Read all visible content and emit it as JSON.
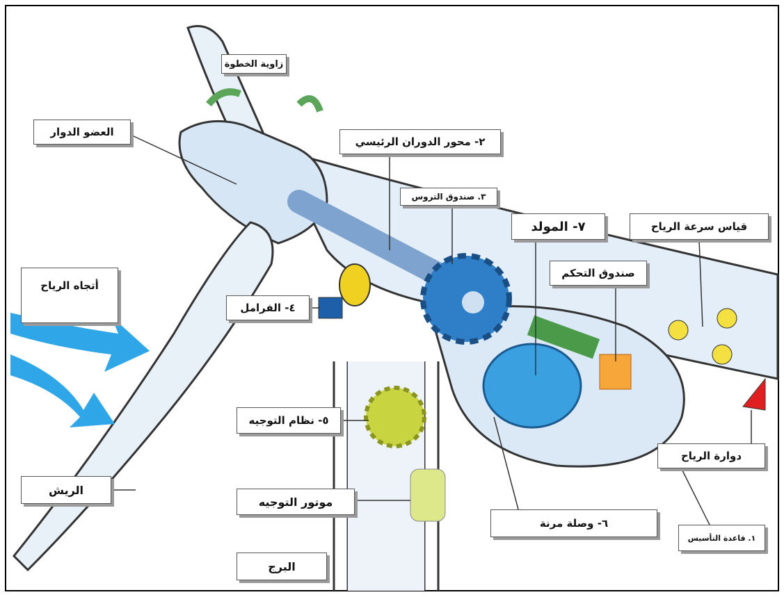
{
  "labels": [
    {
      "text": "زاوية الخطوة"
    },
    {
      "text": "العضو الدوار"
    },
    {
      "text": "٢- محور الدوران الرئيسي"
    },
    {
      "text": "٣. صندوق التروس"
    },
    {
      "text": "٧- المولد"
    },
    {
      "text": "قياس سرعة الرياح"
    },
    {
      "text": "صندوق التحكم"
    },
    {
      "text": "أتجاه الرياح"
    },
    {
      "text": "٤- الفرامل"
    },
    {
      "text": "٥- نظام التوجيه"
    },
    {
      "text": "دوارة الرياح"
    },
    {
      "text": "الريش"
    },
    {
      "text": "موتور التوجيه"
    },
    {
      "text": "٦- وصلة مرنة"
    },
    {
      "text": "١. قاعدة التأسيس"
    },
    {
      "text": "البرج"
    }
  ]
}
